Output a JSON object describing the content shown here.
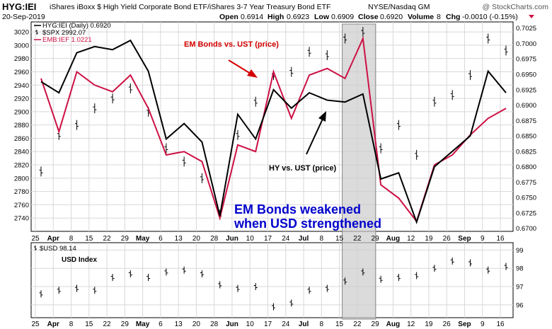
{
  "header": {
    "symbol": "HYG:IEI",
    "description": "iShares iBoxx $ High Yield Corporate Bond ETF/iShares 3-7 Year Treasury Bond ETF",
    "exchange": "NYSE/Nasdaq GM",
    "watermark": "@ StockCharts.com",
    "date": "20-Sep-2019",
    "open_label": "Open",
    "open": "0.6914",
    "high_label": "High",
    "high": "0.6923",
    "low_label": "Low",
    "low": "0.6909",
    "close_label": "Close",
    "close": "0.6920",
    "volume_label": "Volume",
    "volume": "8",
    "chg_label": "Chg",
    "chg": "-0.0010 (-0.15%)"
  },
  "colors": {
    "hyg": "#000000",
    "spx": "#000000",
    "emb": "#cc1144",
    "annotation_red": "#d40000",
    "annotation_blue": "#0000cc",
    "shade": "#cccccc",
    "grid": "#d8d8d8"
  },
  "annotations": {
    "em_bonds": "EM Bonds vs. UST (price)",
    "hy": "HY vs. UST (price)",
    "weakened_line1": "EM Bonds weakened",
    "weakened_line2": "when USD strengthened",
    "usd_index": "USD Index"
  },
  "chart_data": [
    {
      "type": "line",
      "panel": "main",
      "legend": [
        {
          "text": "HYG:IEI (Daily) 0.6920",
          "icon": "line"
        },
        {
          "text": "$SPX 2992.07",
          "icon": "bar"
        },
        {
          "text": "EMB:IEF 1.0221",
          "icon": "line"
        }
      ],
      "legend_position": "top-left",
      "grid": true,
      "x": [
        "Mar 25",
        "Apr 1",
        "Apr 8",
        "Apr 15",
        "Apr 22",
        "Apr 29",
        "May 6",
        "May 13",
        "May 20",
        "May 28",
        "Jun 3",
        "Jun 10",
        "Jun 17",
        "Jun 24",
        "Jul 1",
        "Jul 8",
        "Jul 15",
        "Jul 22",
        "Jul 29",
        "Aug 5",
        "Aug 12",
        "Aug 19",
        "Aug 26",
        "Sep 3",
        "Sep 9",
        "Sep 16",
        "Sep 20"
      ],
      "xticks": [
        "25",
        "Apr",
        "8",
        "15",
        "22",
        "29",
        "May",
        "6",
        "13",
        "20",
        "28",
        "Jun",
        "10",
        "17",
        "24",
        "Jul",
        "8",
        "15",
        "22",
        "29",
        "Aug",
        "12",
        "19",
        "26",
        "Sep",
        "9",
        "16"
      ],
      "left_axis": {
        "ticks": [
          2740,
          2760,
          2780,
          2800,
          2820,
          2840,
          2860,
          2880,
          2900,
          2920,
          2940,
          2960,
          2980,
          3000,
          3020
        ],
        "range": [
          2720,
          3035
        ]
      },
      "right_axis": {
        "ticks": [
          "0.6700",
          "0.6725",
          "0.6750",
          "0.6775",
          "0.6800",
          "0.6825",
          "0.6850",
          "0.6875",
          "0.6900",
          "0.6925",
          "0.6950",
          "0.6975",
          "0.7000",
          "0.7025"
        ],
        "range": [
          0.6695,
          0.7035
        ]
      },
      "shaded_range": [
        "Jul 22",
        "Aug 1"
      ],
      "series": [
        {
          "name": "HYG:IEI",
          "axis": "right",
          "style": "line",
          "values": [
            0.6938,
            0.692,
            0.6985,
            0.6995,
            0.699,
            0.7005,
            0.6955,
            0.6845,
            0.687,
            0.684,
            0.672,
            0.6885,
            0.6845,
            0.6925,
            0.6895,
            0.692,
            0.6908,
            0.6905,
            0.6918,
            0.678,
            0.679,
            0.671,
            0.68,
            0.6825,
            0.685,
            0.6955,
            0.692
          ]
        },
        {
          "name": "$SPX",
          "axis": "left",
          "style": "bar",
          "values": [
            2810,
            2865,
            2880,
            2905,
            2920,
            2935,
            2900,
            2845,
            2825,
            2800,
            2745,
            2865,
            2915,
            2955,
            2960,
            2990,
            2985,
            3010,
            3020,
            2845,
            2880,
            2835,
            2915,
            2925,
            2955,
            3010,
            2992
          ]
        },
        {
          "name": "EMB:IEF",
          "axis": "left",
          "style": "line",
          "values": [
            2950,
            2870,
            2960,
            2940,
            2930,
            2955,
            2905,
            2835,
            2840,
            2825,
            2740,
            2850,
            2840,
            2960,
            2890,
            2955,
            2965,
            2950,
            3010,
            2790,
            2770,
            2735,
            2820,
            2835,
            2865,
            2890,
            2905
          ]
        }
      ]
    },
    {
      "type": "bar",
      "panel": "lower",
      "legend": [
        {
          "text": "$USD 98.14",
          "icon": "bar"
        }
      ],
      "title": "USD Index",
      "grid": true,
      "x": [
        "Mar 25",
        "Apr 1",
        "Apr 8",
        "Apr 15",
        "Apr 22",
        "Apr 29",
        "May 6",
        "May 13",
        "May 20",
        "May 28",
        "Jun 3",
        "Jun 10",
        "Jun 17",
        "Jun 24",
        "Jul 1",
        "Jul 8",
        "Jul 15",
        "Jul 22",
        "Jul 29",
        "Aug 5",
        "Aug 12",
        "Aug 19",
        "Aug 26",
        "Sep 3",
        "Sep 9",
        "Sep 16",
        "Sep 20"
      ],
      "right_axis": {
        "ticks": [
          96,
          97,
          98,
          99
        ],
        "range": [
          95.3,
          99.4
        ]
      },
      "series": [
        {
          "name": "$USD",
          "values": [
            96.6,
            96.8,
            96.9,
            96.8,
            97.5,
            97.7,
            97.5,
            97.8,
            97.9,
            97.7,
            97.1,
            96.9,
            97.0,
            95.9,
            96.1,
            96.8,
            96.9,
            97.3,
            97.8,
            97.4,
            97.5,
            97.6,
            98.0,
            98.4,
            98.3,
            97.9,
            98.1
          ]
        }
      ]
    }
  ]
}
